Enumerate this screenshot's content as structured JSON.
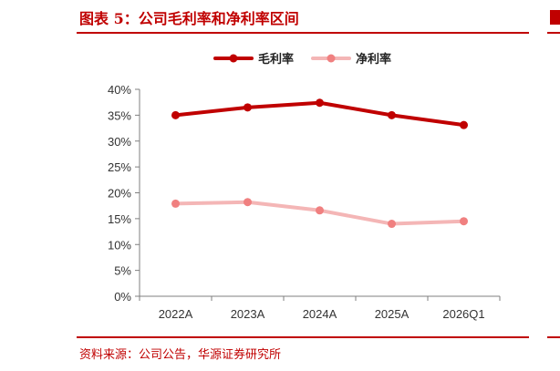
{
  "header": {
    "title": "图表 5：公司毛利率和净利率区间"
  },
  "footer": {
    "source": "资料来源：公司公告，华源证券研究所"
  },
  "colors": {
    "accent": "#c00000",
    "series_gross": "#c00000",
    "series_net": "#f08080",
    "series_net_line": "#f4b6b6",
    "axis": "#7f7f7f"
  },
  "chart_data": {
    "type": "line",
    "title": "",
    "xlabel": "",
    "ylabel": "",
    "categories": [
      "2022A",
      "2023A",
      "2024A",
      "2025A",
      "2026Q1"
    ],
    "ylim": [
      0,
      40
    ],
    "yticks": [
      "0%",
      "5%",
      "10%",
      "15%",
      "20%",
      "25%",
      "30%",
      "35%",
      "40%"
    ],
    "grid": false,
    "legend": "top-center",
    "series": [
      {
        "name": "毛利率",
        "values": [
          35.0,
          36.5,
          37.4,
          35.0,
          33.1
        ]
      },
      {
        "name": "净利率",
        "values": [
          17.9,
          18.2,
          16.6,
          14.0,
          14.5
        ]
      }
    ]
  }
}
